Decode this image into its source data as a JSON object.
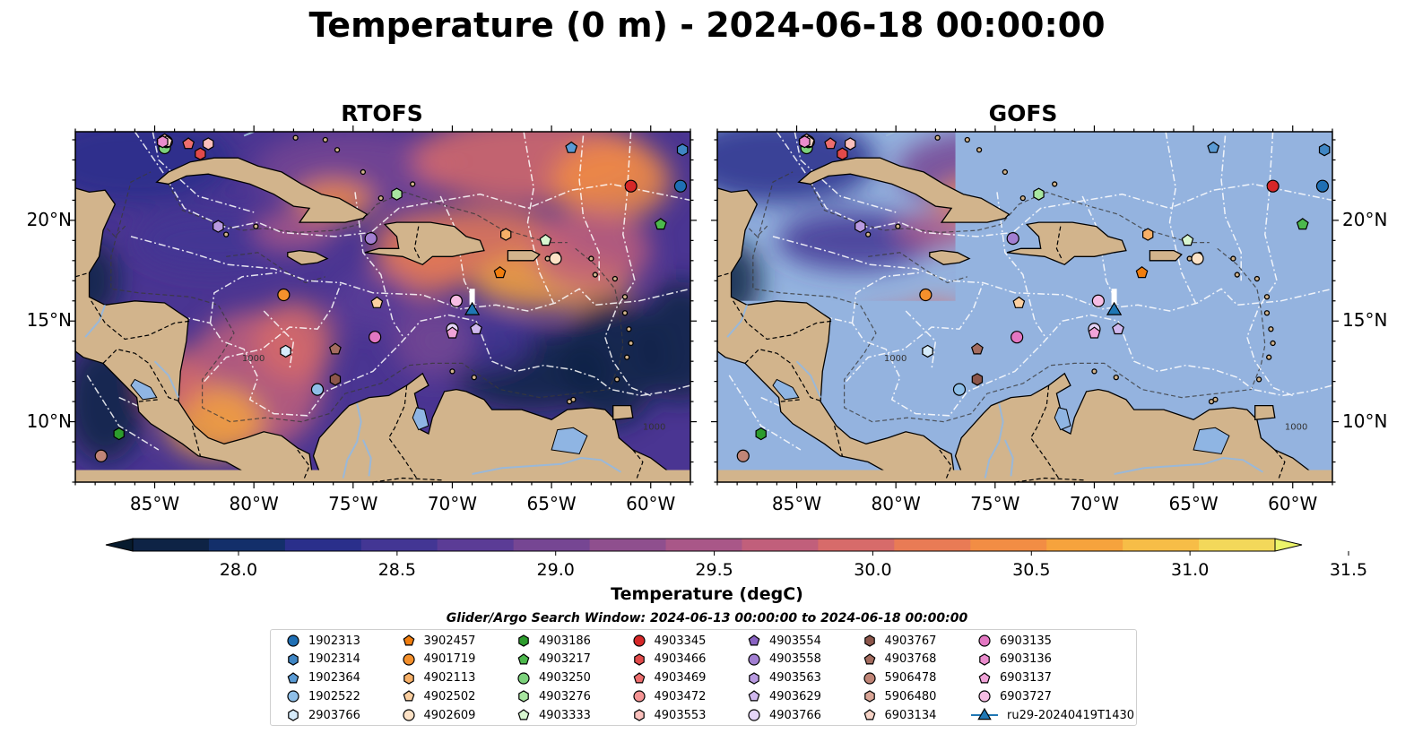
{
  "title": "Temperature (0 m) - 2024-06-18 00:00:00",
  "panels": [
    {
      "name": "RTOFS",
      "mode": "full"
    },
    {
      "name": "GOFS",
      "mode": "partial"
    }
  ],
  "map": {
    "lon_range": [
      -89,
      -58
    ],
    "lat_range": [
      7,
      24.4
    ],
    "lon_ticks": [
      "85°W",
      "80°W",
      "75°W",
      "70°W",
      "65°W",
      "60°W"
    ],
    "lat_ticks": [
      "20°N",
      "15°N",
      "10°N"
    ],
    "land_color": "#d2b48c",
    "ocean_fill_gofs": "#94b3df",
    "contour_labels": [
      "1000",
      "1000"
    ]
  },
  "colorbar": {
    "label": "Temperature (degC)",
    "ticks": [
      "28.0",
      "28.5",
      "29.0",
      "29.5",
      "30.0",
      "30.5",
      "31.0",
      "31.5"
    ],
    "range": [
      28.0,
      31.5
    ],
    "colors": [
      "#0e2345",
      "#132f6a",
      "#2a2f8b",
      "#433694",
      "#5b3c96",
      "#764693",
      "#8f4f8e",
      "#a95788",
      "#c15f7b",
      "#d76b6a",
      "#e97b55",
      "#f28d44",
      "#f6a33d",
      "#f7bd47",
      "#f3d85a"
    ],
    "under_color": "#071b2e",
    "over_color": "#ecf46a"
  },
  "search_window": "Glider/Argo Search Window: 2024-06-13 00:00:00 to 2024-06-18 00:00:00",
  "legend": [
    {
      "label": "1902313",
      "marker": "circle",
      "color": "#1f6fb4"
    },
    {
      "label": "1902314",
      "marker": "hexagon",
      "color": "#3f86c4"
    },
    {
      "label": "1902364",
      "marker": "pentagon",
      "color": "#5a9bd5"
    },
    {
      "label": "1902522",
      "marker": "circle",
      "color": "#8fbfe8"
    },
    {
      "label": "2903766",
      "marker": "hexagon",
      "color": "#d6ebfa"
    },
    {
      "label": "3902457",
      "marker": "pentagon",
      "color": "#f07d0e"
    },
    {
      "label": "4901719",
      "marker": "circle",
      "color": "#f4902c"
    },
    {
      "label": "4902113",
      "marker": "hexagon",
      "color": "#f7b068"
    },
    {
      "label": "4902502",
      "marker": "pentagon",
      "color": "#fbcfa0"
    },
    {
      "label": "4902609",
      "marker": "circle",
      "color": "#fde2c6"
    },
    {
      "label": "4903186",
      "marker": "hexagon",
      "color": "#2d9c2d"
    },
    {
      "label": "4903217",
      "marker": "pentagon",
      "color": "#4cb84c"
    },
    {
      "label": "4903250",
      "marker": "circle",
      "color": "#7cd27c"
    },
    {
      "label": "4903276",
      "marker": "hexagon",
      "color": "#a8e6a0"
    },
    {
      "label": "4903333",
      "marker": "pentagon",
      "color": "#d8f6d0"
    },
    {
      "label": "4903345",
      "marker": "circle",
      "color": "#d62728"
    },
    {
      "label": "4903466",
      "marker": "hexagon",
      "color": "#e24a4a"
    },
    {
      "label": "4903469",
      "marker": "pentagon",
      "color": "#ee6e6e"
    },
    {
      "label": "4903472",
      "marker": "circle",
      "color": "#f59494"
    },
    {
      "label": "4903553",
      "marker": "hexagon",
      "color": "#fbc0bc"
    },
    {
      "label": "4903554",
      "marker": "pentagon",
      "color": "#8a63c3"
    },
    {
      "label": "4903558",
      "marker": "circle",
      "color": "#a27fd2"
    },
    {
      "label": "4903563",
      "marker": "hexagon",
      "color": "#b89ae0"
    },
    {
      "label": "4903629",
      "marker": "pentagon",
      "color": "#d0b8ee"
    },
    {
      "label": "4903766",
      "marker": "circle",
      "color": "#e4d4f7"
    },
    {
      "label": "4903767",
      "marker": "hexagon",
      "color": "#8c564b"
    },
    {
      "label": "4903768",
      "marker": "pentagon",
      "color": "#a46c5f"
    },
    {
      "label": "5906478",
      "marker": "circle",
      "color": "#c08577"
    },
    {
      "label": "5906480",
      "marker": "hexagon",
      "color": "#d9a596"
    },
    {
      "label": "6903134",
      "marker": "pentagon",
      "color": "#f6d3c6"
    },
    {
      "label": "6903135",
      "marker": "circle",
      "color": "#e377c2"
    },
    {
      "label": "6903136",
      "marker": "hexagon",
      "color": "#ea8ccd"
    },
    {
      "label": "6903137",
      "marker": "pentagon",
      "color": "#f0a3d8"
    },
    {
      "label": "6903727",
      "marker": "circle",
      "color": "#f6bde3"
    },
    {
      "label": "ru29-20240419T1430",
      "marker": "triangle-line",
      "color": "#1f77b4"
    }
  ],
  "floats": [
    {
      "label": "1902313",
      "lon": -58.5,
      "lat": 21.7
    },
    {
      "label": "1902314",
      "lon": -58.4,
      "lat": 23.5
    },
    {
      "label": "1902364",
      "lon": -64.0,
      "lat": 23.6
    },
    {
      "label": "1902522",
      "lon": -76.8,
      "lat": 11.6
    },
    {
      "label": "2903766",
      "lon": -78.4,
      "lat": 13.5
    },
    {
      "label": "3902457",
      "lon": -67.6,
      "lat": 17.4
    },
    {
      "label": "4901719",
      "lon": -78.5,
      "lat": 16.3
    },
    {
      "label": "4902113",
      "lon": -67.3,
      "lat": 19.3
    },
    {
      "label": "4902502",
      "lon": -73.8,
      "lat": 15.9
    },
    {
      "label": "4902609",
      "lon": -64.8,
      "lat": 18.1
    },
    {
      "label": "4903186",
      "lon": -86.8,
      "lat": 9.4
    },
    {
      "label": "4903217",
      "lon": -59.5,
      "lat": 19.8
    },
    {
      "label": "4903250",
      "lon": -84.5,
      "lat": 23.6
    },
    {
      "label": "4903276",
      "lon": -72.8,
      "lat": 21.3
    },
    {
      "label": "4903333",
      "lon": -65.3,
      "lat": 19.0
    },
    {
      "label": "4903345",
      "lon": -61.0,
      "lat": 21.7
    },
    {
      "label": "4903466",
      "lon": -82.7,
      "lat": 23.3
    },
    {
      "label": "4903469",
      "lon": -83.3,
      "lat": 23.8
    },
    {
      "label": "4903472",
      "lon": -84.4,
      "lat": 23.9
    },
    {
      "label": "4903553",
      "lon": -82.3,
      "lat": 23.8
    },
    {
      "label": "4903554",
      "lon": -84.6,
      "lat": 23.9
    },
    {
      "label": "4903558",
      "lon": -74.1,
      "lat": 19.1
    },
    {
      "label": "4903563",
      "lon": -81.8,
      "lat": 19.7
    },
    {
      "label": "4903629",
      "lon": -68.8,
      "lat": 14.6
    },
    {
      "label": "4903766",
      "lon": -70.0,
      "lat": 14.6
    },
    {
      "label": "4903767",
      "lon": -75.9,
      "lat": 12.1
    },
    {
      "label": "4903768",
      "lon": -75.9,
      "lat": 13.6
    },
    {
      "label": "5906478",
      "lon": -87.7,
      "lat": 8.3
    },
    {
      "label": "5906480",
      "lon": -84.5,
      "lat": 24.0
    },
    {
      "label": "6903134",
      "lon": -84.4,
      "lat": 23.9
    },
    {
      "label": "6903135",
      "lon": -73.9,
      "lat": 14.2
    },
    {
      "label": "6903136",
      "lon": -84.6,
      "lat": 23.9
    },
    {
      "label": "6903137",
      "lon": -70.0,
      "lat": 14.4
    },
    {
      "label": "6903727",
      "lon": -69.8,
      "lat": 16.0
    }
  ],
  "glider": {
    "label": "ru29-20240419T1430",
    "lon": -69.0,
    "lat": 15.6
  }
}
